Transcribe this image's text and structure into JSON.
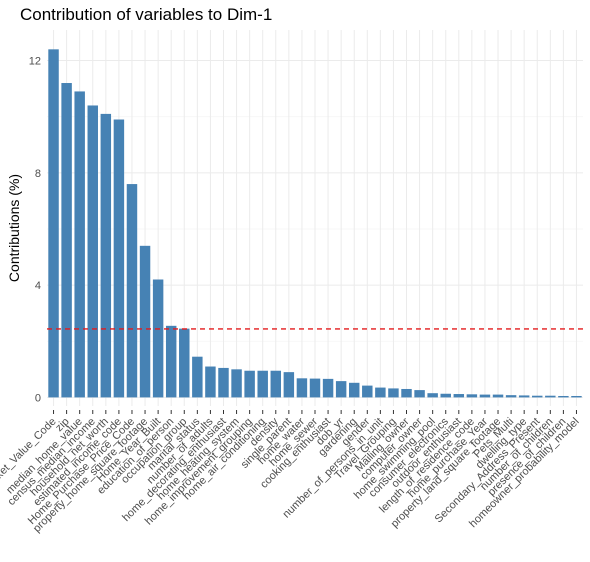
{
  "chart_data": {
    "type": "bar",
    "title": "Contribution of variables to Dim-1",
    "xlabel": "",
    "ylabel": "Contributions (%)",
    "ylim": [
      0,
      13.2
    ],
    "yticks": [
      0,
      4,
      8,
      12
    ],
    "grid": true,
    "bar_color": "#4682b4",
    "reference_line": {
      "value": 2.44,
      "color": "#e41a1c",
      "style": "dashed"
    },
    "categories": [
      "Home_Market_Value_Code",
      "zip",
      "median_home_value",
      "census_median_income",
      "household_net_worth",
      "estimated_income_code",
      "Home_Purchase_Price_Code",
      "property_home_square_footage",
      "Home_Year_Built",
      "education_of_person",
      "occupation_group",
      "marital_status",
      "number_of_adults",
      "home_decorating_enthusiast",
      "home_heating_system",
      "home_improvement_grouping",
      "home_air_conditioning",
      "density",
      "single_parent",
      "home_water",
      "home_sewer",
      "cooking_enthusiast",
      "dob_yr",
      "gardening",
      "gender",
      "number_of_persons_in_unit",
      "Travel_Grouping",
      "Mailing_owner",
      "computer_owner",
      "home_swimming_pool",
      "consumer_electronics",
      "outdoor_enthusiast",
      "length_of_residence_code",
      "home_purchase_Year",
      "property_land_square_footage",
      "Pets_Multi",
      "dwelling_type",
      "Secondary_Address_Present",
      "number_of_children",
      "presence_of_children",
      "homeowner_probability_model"
    ],
    "values": [
      12.4,
      11.2,
      10.9,
      10.4,
      10.1,
      9.9,
      7.6,
      5.4,
      4.2,
      2.55,
      2.45,
      1.45,
      1.1,
      1.05,
      1.0,
      0.95,
      0.95,
      0.95,
      0.9,
      0.68,
      0.67,
      0.66,
      0.58,
      0.52,
      0.42,
      0.35,
      0.32,
      0.3,
      0.26,
      0.15,
      0.13,
      0.12,
      0.11,
      0.1,
      0.1,
      0.08,
      0.07,
      0.06,
      0.06,
      0.05,
      0.05
    ]
  }
}
